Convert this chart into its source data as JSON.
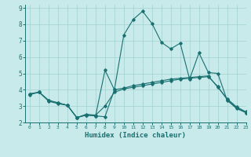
{
  "title": "",
  "xlabel": "Humidex (Indice chaleur)",
  "xlim": [
    -0.5,
    23
  ],
  "ylim": [
    2,
    9.2
  ],
  "yticks": [
    2,
    3,
    4,
    5,
    6,
    7,
    8,
    9
  ],
  "xticks": [
    0,
    1,
    2,
    3,
    4,
    5,
    6,
    7,
    8,
    9,
    10,
    11,
    12,
    13,
    14,
    15,
    16,
    17,
    18,
    19,
    20,
    21,
    22,
    23
  ],
  "bg_color": "#c8eaea",
  "line_color": "#1a7070",
  "grid_color": "#aad4d4",
  "series1_x": [
    0,
    1,
    2,
    3,
    4,
    5,
    6,
    7,
    8,
    9,
    10,
    11,
    12,
    13,
    14,
    15,
    16,
    17,
    18,
    19,
    20,
    21,
    22,
    23
  ],
  "series1_y": [
    3.7,
    3.85,
    3.35,
    3.2,
    3.05,
    2.3,
    2.45,
    2.4,
    2.35,
    4.0,
    4.1,
    4.25,
    4.35,
    4.45,
    4.55,
    4.65,
    4.7,
    4.75,
    4.8,
    4.85,
    4.15,
    3.45,
    2.95,
    2.65
  ],
  "series2_x": [
    0,
    1,
    2,
    3,
    4,
    5,
    6,
    7,
    8,
    9,
    10,
    11,
    12,
    13,
    14,
    15,
    16,
    17,
    18,
    19,
    20,
    21,
    22,
    23
  ],
  "series2_y": [
    3.75,
    3.85,
    3.3,
    3.15,
    3.05,
    2.3,
    2.5,
    2.45,
    3.0,
    3.85,
    4.05,
    4.15,
    4.25,
    4.35,
    4.45,
    4.55,
    4.65,
    4.7,
    4.75,
    4.8,
    4.2,
    3.4,
    2.9,
    2.6
  ],
  "series3_x": [
    0,
    1,
    2,
    3,
    4,
    5,
    6,
    7,
    8,
    9,
    10,
    11,
    12,
    13,
    14,
    15,
    16,
    17,
    18,
    19,
    20,
    21,
    22,
    23
  ],
  "series3_y": [
    3.75,
    3.85,
    3.35,
    3.2,
    3.05,
    2.3,
    2.45,
    2.4,
    5.2,
    4.0,
    7.35,
    8.3,
    8.8,
    8.05,
    6.9,
    6.5,
    6.85,
    4.65,
    6.25,
    5.05,
    5.0,
    3.35,
    2.85,
    2.6
  ]
}
